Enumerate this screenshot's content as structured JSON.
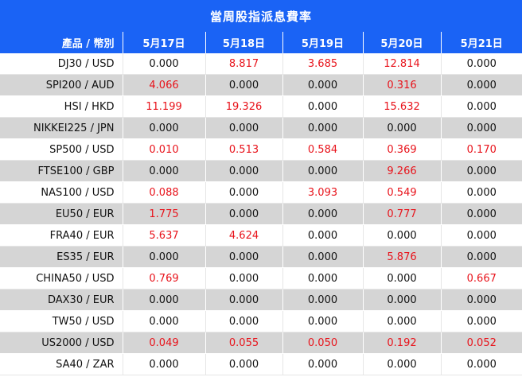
{
  "title": "當周股指派息費率",
  "header": {
    "product_col": "產品 / 幣別",
    "dates": [
      "5月17日",
      "5月18日",
      "5月19日",
      "5月20日",
      "5月21日"
    ]
  },
  "colors": {
    "header_bg": "#1a63f5",
    "positive_value": "#e8131b",
    "zero_value": "#111111",
    "stripe": "#d5d5d5"
  },
  "rows": [
    {
      "product": "DJ30 / USD",
      "values": [
        "0.000",
        "8.817",
        "3.685",
        "12.814",
        "0.000"
      ]
    },
    {
      "product": "SPI200 / AUD",
      "values": [
        "4.066",
        "0.000",
        "0.000",
        "0.316",
        "0.000"
      ]
    },
    {
      "product": "HSI / HKD",
      "values": [
        "11.199",
        "19.326",
        "0.000",
        "15.632",
        "0.000"
      ]
    },
    {
      "product": "NIKKEI225 / JPN",
      "values": [
        "0.000",
        "0.000",
        "0.000",
        "0.000",
        "0.000"
      ]
    },
    {
      "product": "SP500 / USD",
      "values": [
        "0.010",
        "0.513",
        "0.584",
        "0.369",
        "0.170"
      ]
    },
    {
      "product": "FTSE100 / GBP",
      "values": [
        "0.000",
        "0.000",
        "0.000",
        "9.266",
        "0.000"
      ]
    },
    {
      "product": "NAS100 / USD",
      "values": [
        "0.088",
        "0.000",
        "3.093",
        "0.549",
        "0.000"
      ]
    },
    {
      "product": "EU50 / EUR",
      "values": [
        "1.775",
        "0.000",
        "0.000",
        "0.777",
        "0.000"
      ]
    },
    {
      "product": "FRA40 / EUR",
      "values": [
        "5.637",
        "4.624",
        "0.000",
        "0.000",
        "0.000"
      ]
    },
    {
      "product": "ES35 / EUR",
      "values": [
        "0.000",
        "0.000",
        "0.000",
        "5.876",
        "0.000"
      ]
    },
    {
      "product": "CHINA50 / USD",
      "values": [
        "0.769",
        "0.000",
        "0.000",
        "0.000",
        "0.667"
      ]
    },
    {
      "product": "DAX30 / EUR",
      "values": [
        "0.000",
        "0.000",
        "0.000",
        "0.000",
        "0.000"
      ]
    },
    {
      "product": "TW50 / USD",
      "values": [
        "0.000",
        "0.000",
        "0.000",
        "0.000",
        "0.000"
      ]
    },
    {
      "product": "US2000 / USD",
      "values": [
        "0.049",
        "0.055",
        "0.050",
        "0.192",
        "0.052"
      ]
    },
    {
      "product": "SA40 / ZAR",
      "values": [
        "0.000",
        "0.000",
        "0.000",
        "0.000",
        "0.000"
      ]
    }
  ]
}
